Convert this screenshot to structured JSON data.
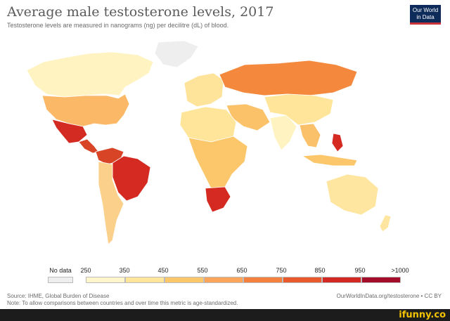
{
  "header": {
    "title": "Average male testosterone levels, 2017",
    "subtitle": "Testosterone levels are measured in nanograms (ng) per decilitre (dL) of blood."
  },
  "logo": {
    "line1": "Our World",
    "line2": "in Data",
    "bg": "#0d2c5a",
    "accent": "#c7343b"
  },
  "legend": {
    "labels": [
      "No data",
      "250",
      "350",
      "450",
      "550",
      "650",
      "750",
      "850",
      "950",
      ">1000"
    ],
    "bins": [
      {
        "color": "#eeeeee"
      },
      {
        "color": "#fff5cc"
      },
      {
        "color": "#fee59a"
      },
      {
        "color": "#fdc76a"
      },
      {
        "color": "#fba55a"
      },
      {
        "color": "#f4803d"
      },
      {
        "color": "#e85a2b"
      },
      {
        "color": "#d22a22"
      },
      {
        "color": "#a40d2a"
      }
    ]
  },
  "regions": [
    {
      "name": "canada-alaska",
      "color": "#fff3c2"
    },
    {
      "name": "usa",
      "color": "#fbb866"
    },
    {
      "name": "mexico",
      "color": "#d32a22"
    },
    {
      "name": "central-america",
      "color": "#d74426"
    },
    {
      "name": "greenland",
      "color": "#eeeeee"
    },
    {
      "name": "brazil",
      "color": "#d42a22"
    },
    {
      "name": "colombia-venezuela",
      "color": "#d74426"
    },
    {
      "name": "southern-cone",
      "color": "#fbd08a"
    },
    {
      "name": "europe",
      "color": "#fee39a"
    },
    {
      "name": "russia",
      "color": "#f4893e"
    },
    {
      "name": "middle-east",
      "color": "#fcc26a"
    },
    {
      "name": "north-africa",
      "color": "#fee59a"
    },
    {
      "name": "central-africa",
      "color": "#fcc66a"
    },
    {
      "name": "south-africa",
      "color": "#d42a22"
    },
    {
      "name": "india",
      "color": "#fff3c2"
    },
    {
      "name": "china",
      "color": "#fee59a"
    },
    {
      "name": "southeast-asia",
      "color": "#fbc06a"
    },
    {
      "name": "philippines",
      "color": "#d42a22"
    },
    {
      "name": "indonesia",
      "color": "#fcc66a"
    },
    {
      "name": "australia",
      "color": "#fee6a0"
    },
    {
      "name": "new-zealand",
      "color": "#fee6a0"
    }
  ],
  "footer": {
    "source": "Source: IHME, Global Burden of Disease",
    "note": "Note: To allow comparisons between countries and over time this metric is age-standardized.",
    "credit": "OurWorldInData.org/testosterone • CC BY"
  },
  "watermark": {
    "text": "ifunny.co",
    "color": "#f5c400"
  }
}
